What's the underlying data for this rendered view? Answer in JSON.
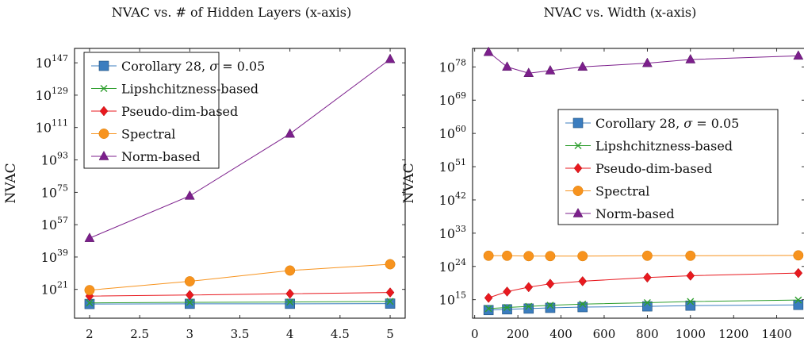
{
  "chart_data": [
    {
      "type": "line",
      "title": "NVAC vs. # of Hidden Layers (x-axis)",
      "xlabel": "",
      "ylabel": "NVAC",
      "x": [
        2,
        3,
        4,
        5
      ],
      "xlim": [
        1.85,
        5.15
      ],
      "xticks": [
        "2",
        "2.5",
        "3",
        "3.5",
        "4",
        "4.5",
        "5"
      ],
      "y_scale": "log10",
      "ylim_exp": [
        5,
        155
      ],
      "ytick_exponents": [
        "21",
        "39",
        "57",
        "75",
        "93",
        "111",
        "129",
        "147"
      ],
      "legend_position": "top-left",
      "series": [
        {
          "name": "Corollary 28, σ = 0.05",
          "marker": "square",
          "color": "#3b7dbf",
          "log10_values": [
            12.9,
            13.0,
            13.0,
            13.1
          ]
        },
        {
          "name": "Lipshchitzness-based",
          "marker": "x",
          "color": "#2e9e2e",
          "log10_values": [
            13.5,
            13.8,
            14.0,
            14.3
          ]
        },
        {
          "name": "Pseudo-dim-based",
          "marker": "diamond",
          "color": "#e8191f",
          "log10_values": [
            17.3,
            17.9,
            18.6,
            19.3
          ]
        },
        {
          "name": "Spectral",
          "marker": "circle",
          "color": "#f7931e",
          "log10_values": [
            20.6,
            25.5,
            31.5,
            35.0
          ]
        },
        {
          "name": "Norm-based",
          "marker": "triangle",
          "color": "#7c1f8c",
          "log10_values": [
            49.5,
            73.0,
            107.5,
            149.0
          ]
        }
      ]
    },
    {
      "type": "line",
      "title": "NVAC vs. Width (x-axis)",
      "xlabel": "",
      "ylabel": "NVAC",
      "x": [
        64,
        150,
        250,
        350,
        500,
        800,
        1000,
        1500
      ],
      "xlim": [
        -10,
        1530
      ],
      "xticks": [
        "0",
        "200",
        "400",
        "600",
        "800",
        "1000",
        "1200",
        "1400"
      ],
      "y_scale": "log10",
      "ylim_exp": [
        10,
        83
      ],
      "ytick_exponents": [
        "15",
        "24",
        "33",
        "42",
        "51",
        "60",
        "69",
        "78"
      ],
      "legend_position": "center-right",
      "series": [
        {
          "name": "Corollary 28, σ = 0.05",
          "marker": "square",
          "color": "#3b7dbf",
          "log10_values": [
            12.2,
            12.4,
            12.6,
            12.8,
            13.0,
            13.2,
            13.4,
            13.6
          ]
        },
        {
          "name": "Lipshchitzness-based",
          "marker": "x",
          "color": "#2e9e2e",
          "log10_values": [
            12.6,
            12.9,
            13.2,
            13.5,
            13.8,
            14.2,
            14.5,
            14.9
          ]
        },
        {
          "name": "Pseudo-dim-based",
          "marker": "diamond",
          "color": "#e8191f",
          "log10_values": [
            15.5,
            17.2,
            18.4,
            19.3,
            20.0,
            21.0,
            21.5,
            22.2
          ]
        },
        {
          "name": "Spectral",
          "marker": "circle",
          "color": "#f7931e",
          "log10_values": [
            26.9,
            26.9,
            26.8,
            26.8,
            26.8,
            26.9,
            26.9,
            27.0
          ]
        },
        {
          "name": "Norm-based",
          "marker": "triangle",
          "color": "#7c1f8c",
          "log10_values": [
            82.0,
            78.0,
            76.3,
            77.0,
            78.0,
            79.0,
            80.0,
            81.0
          ]
        }
      ]
    }
  ]
}
